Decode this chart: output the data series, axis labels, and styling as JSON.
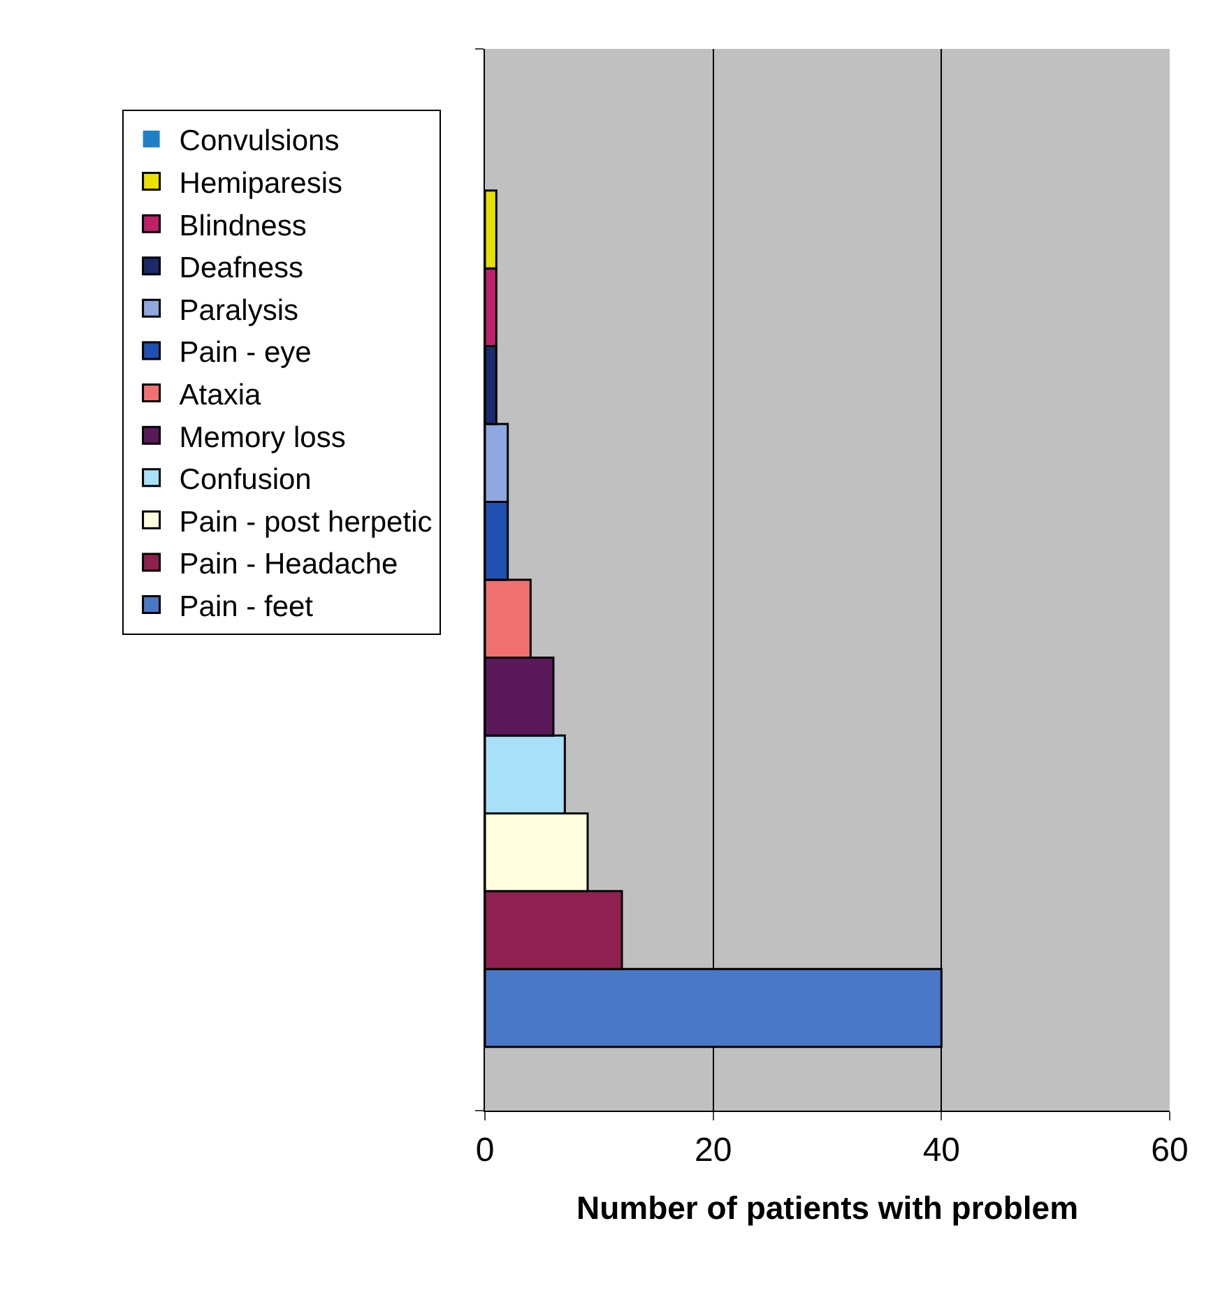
{
  "chart_data": {
    "type": "bar",
    "orientation": "horizontal",
    "xlabel": "Number of patients with problem",
    "categories": [
      null
    ],
    "series": [
      {
        "name": "Convulsions",
        "color": "#1f80c8",
        "values": [
          0
        ]
      },
      {
        "name": "Hemiparesis",
        "color": "#e8e000",
        "values": [
          1
        ]
      },
      {
        "name": "Blindness",
        "color": "#c0206a",
        "values": [
          1
        ]
      },
      {
        "name": "Deafness",
        "color": "#1a2a6a",
        "values": [
          1
        ]
      },
      {
        "name": "Paralysis",
        "color": "#90a8e0",
        "values": [
          2
        ]
      },
      {
        "name": "Pain - eye",
        "color": "#2050b0",
        "values": [
          2
        ]
      },
      {
        "name": "Ataxia",
        "color": "#f07070",
        "values": [
          4
        ]
      },
      {
        "name": "Memory loss",
        "color": "#5a1a5a",
        "values": [
          6
        ]
      },
      {
        "name": "Confusion",
        "color": "#a8e0f8",
        "values": [
          7
        ]
      },
      {
        "name": "Pain - post herpetic",
        "color": "#ffffe0",
        "values": [
          9
        ]
      },
      {
        "name": "Pain - Headache",
        "color": "#902050",
        "values": [
          12
        ]
      },
      {
        "name": "Pain - feet",
        "color": "#4a78c8",
        "values": [
          40
        ]
      }
    ],
    "xlim": [
      0,
      60
    ],
    "xticks": [
      0,
      20,
      40,
      60
    ],
    "grid": "x",
    "legend": "left",
    "tick_labels": "x"
  }
}
